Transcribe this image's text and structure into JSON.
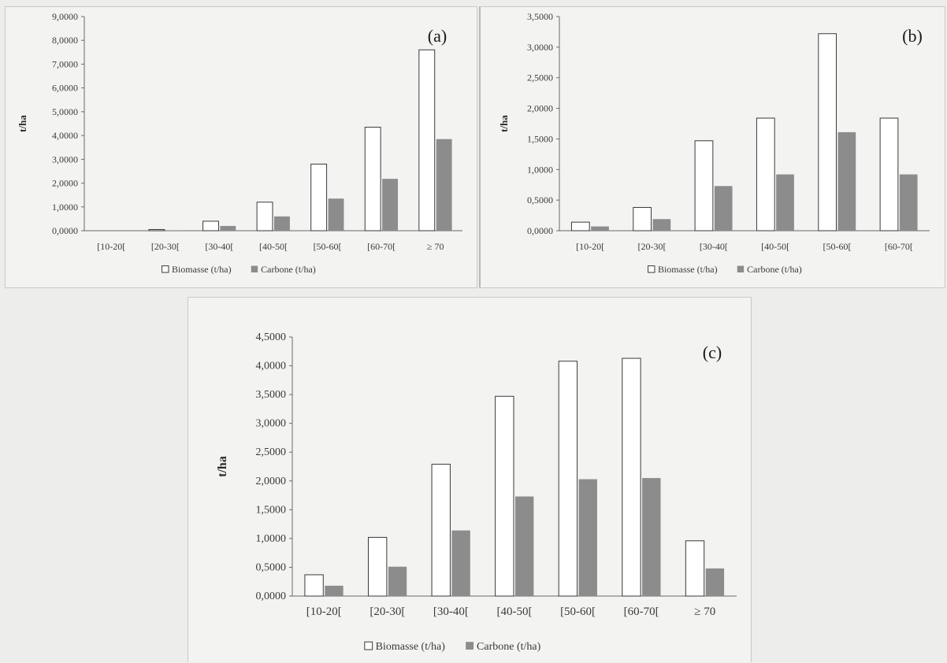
{
  "legend": {
    "biomass": "Biomasse (t/ha)",
    "carbon": "Carbone (t/ha)"
  },
  "colors": {
    "biomass_fill": "#ffffff",
    "biomass_stroke": "#3a3a3a",
    "carbon_fill": "#8c8c8c"
  },
  "chart_data": [
    {
      "type": "bar",
      "panel_label": "(a)",
      "ylabel": "t/ha",
      "xlabel": "",
      "ylim": [
        0,
        9
      ],
      "yticks": [
        "0,0000",
        "1,0000",
        "2,0000",
        "3,0000",
        "4,0000",
        "5,0000",
        "6,0000",
        "7,0000",
        "8,0000",
        "9,0000"
      ],
      "categories": [
        "[10-20[",
        "[20-30[",
        "[30-40[",
        "[40-50[",
        "[50-60[",
        "[60-70[",
        "≥ 70"
      ],
      "series": [
        {
          "name": "Biomasse (t/ha)",
          "values": [
            0.0,
            0.05,
            0.4,
            1.2,
            2.8,
            4.35,
            7.6
          ]
        },
        {
          "name": "Carbone (t/ha)",
          "values": [
            0.0,
            0.02,
            0.2,
            0.6,
            1.35,
            2.18,
            3.85
          ]
        }
      ],
      "legend_position": "bottom",
      "grid": false
    },
    {
      "type": "bar",
      "panel_label": "(b)",
      "ylabel": "t/ha",
      "xlabel": "",
      "ylim": [
        0,
        3.5
      ],
      "yticks": [
        "0,0000",
        "0,5000",
        "1,0000",
        "1,5000",
        "2,0000",
        "2,5000",
        "3,0000",
        "3,5000"
      ],
      "categories": [
        "[10-20[",
        "[20-30[",
        "[30-40[",
        "[40-50[",
        "[50-60[",
        "[60-70["
      ],
      "series": [
        {
          "name": "Biomasse (t/ha)",
          "values": [
            0.14,
            0.38,
            1.47,
            1.84,
            3.22,
            1.84
          ]
        },
        {
          "name": "Carbone (t/ha)",
          "values": [
            0.07,
            0.19,
            0.73,
            0.92,
            1.61,
            0.92
          ]
        }
      ],
      "legend_position": "bottom",
      "grid": false
    },
    {
      "type": "bar",
      "panel_label": "(c)",
      "ylabel": "t/ha",
      "xlabel": "",
      "ylim": [
        0,
        4.5
      ],
      "yticks": [
        "0,0000",
        "0,5000",
        "1,0000",
        "1,5000",
        "2,0000",
        "2,5000",
        "3,0000",
        "3,5000",
        "4,0000",
        "4,5000"
      ],
      "categories": [
        "[10-20[",
        "[20-30[",
        "[30-40[",
        "[40-50[",
        "[50-60[",
        "[60-70[",
        "≥ 70"
      ],
      "series": [
        {
          "name": "Biomasse (t/ha)",
          "values": [
            0.37,
            1.02,
            2.29,
            3.47,
            4.08,
            4.13,
            0.96
          ]
        },
        {
          "name": "Carbone (t/ha)",
          "values": [
            0.18,
            0.51,
            1.14,
            1.73,
            2.03,
            2.05,
            0.48
          ]
        }
      ],
      "legend_position": "bottom",
      "grid": false
    }
  ]
}
